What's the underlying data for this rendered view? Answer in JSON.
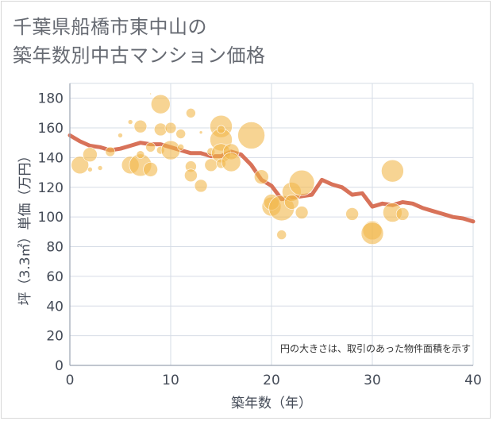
{
  "title_lines": [
    "千葉県船橋市東中山の",
    "築年数別中古マンション価格"
  ],
  "chart_data": {
    "type": "scatter",
    "title": "千葉県船橋市東中山の築年数別中古マンション価格",
    "xlabel": "築年数（年）",
    "ylabel": "坪（3.3㎡）単価（万円）",
    "xlim": [
      0,
      40
    ],
    "ylim": [
      0,
      190
    ],
    "xticks": [
      0,
      10,
      20,
      30,
      40
    ],
    "yticks": [
      0,
      20,
      40,
      60,
      80,
      100,
      120,
      140,
      160,
      180
    ],
    "grid": true,
    "note": "円の大きさは、取引のあった物件面積を示す",
    "colors": {
      "bubble": "#f2b84b",
      "trend": "#d66a50",
      "grid": "#d6dce6",
      "axis": "#9aa3b2"
    },
    "bubbles": [
      {
        "x": 1,
        "y": 135,
        "r": 11
      },
      {
        "x": 2,
        "y": 142,
        "r": 9
      },
      {
        "x": 2,
        "y": 132,
        "r": 3
      },
      {
        "x": 3,
        "y": 133,
        "r": 3
      },
      {
        "x": 4,
        "y": 144,
        "r": 6
      },
      {
        "x": 5,
        "y": 155,
        "r": 3
      },
      {
        "x": 6,
        "y": 164,
        "r": 3
      },
      {
        "x": 6,
        "y": 135,
        "r": 11
      },
      {
        "x": 7,
        "y": 135,
        "r": 14
      },
      {
        "x": 7,
        "y": 161,
        "r": 8
      },
      {
        "x": 7,
        "y": 142,
        "r": 5
      },
      {
        "x": 8,
        "y": 183,
        "r": 1
      },
      {
        "x": 8,
        "y": 147,
        "r": 6
      },
      {
        "x": 8,
        "y": 132,
        "r": 9
      },
      {
        "x": 9,
        "y": 176,
        "r": 12
      },
      {
        "x": 9,
        "y": 159,
        "r": 8
      },
      {
        "x": 9,
        "y": 145,
        "r": 5
      },
      {
        "x": 10,
        "y": 145,
        "r": 12
      },
      {
        "x": 10,
        "y": 160,
        "r": 7
      },
      {
        "x": 11,
        "y": 156,
        "r": 6
      },
      {
        "x": 11,
        "y": 147,
        "r": 4
      },
      {
        "x": 12,
        "y": 170,
        "r": 6
      },
      {
        "x": 12,
        "y": 134,
        "r": 7
      },
      {
        "x": 12,
        "y": 128,
        "r": 8
      },
      {
        "x": 13,
        "y": 121,
        "r": 8
      },
      {
        "x": 13,
        "y": 157,
        "r": 2
      },
      {
        "x": 14,
        "y": 135,
        "r": 8
      },
      {
        "x": 14,
        "y": 144,
        "r": 5
      },
      {
        "x": 15,
        "y": 161,
        "r": 14
      },
      {
        "x": 15,
        "y": 152,
        "r": 14
      },
      {
        "x": 15,
        "y": 143,
        "r": 12
      },
      {
        "x": 15,
        "y": 136,
        "r": 6
      },
      {
        "x": 15,
        "y": 159,
        "r": 5
      },
      {
        "x": 16,
        "y": 144,
        "r": 10
      },
      {
        "x": 16,
        "y": 137,
        "r": 12
      },
      {
        "x": 18,
        "y": 155,
        "r": 17
      },
      {
        "x": 19,
        "y": 127,
        "r": 9
      },
      {
        "x": 20,
        "y": 107,
        "r": 12
      },
      {
        "x": 20,
        "y": 110,
        "r": 10
      },
      {
        "x": 21,
        "y": 106,
        "r": 16
      },
      {
        "x": 21,
        "y": 88,
        "r": 6
      },
      {
        "x": 22,
        "y": 117,
        "r": 12
      },
      {
        "x": 22,
        "y": 110,
        "r": 9
      },
      {
        "x": 23,
        "y": 123,
        "r": 16
      },
      {
        "x": 23,
        "y": 103,
        "r": 8
      },
      {
        "x": 28,
        "y": 102,
        "r": 8
      },
      {
        "x": 30,
        "y": 91,
        "r": 12
      },
      {
        "x": 30,
        "y": 89,
        "r": 14
      },
      {
        "x": 32,
        "y": 131,
        "r": 14
      },
      {
        "x": 32,
        "y": 103,
        "r": 12
      },
      {
        "x": 33,
        "y": 102,
        "r": 8
      }
    ],
    "trend": {
      "x": [
        0,
        1,
        2,
        3,
        4,
        5,
        6,
        7,
        8,
        9,
        10,
        11,
        12,
        13,
        14,
        15,
        16,
        17,
        18,
        19,
        20,
        21,
        22,
        23,
        24,
        25,
        26,
        27,
        28,
        29,
        30,
        31,
        32,
        33,
        34,
        35,
        36,
        37,
        38,
        39,
        40
      ],
      "y": [
        155,
        151,
        148,
        147,
        145,
        146,
        148,
        150,
        149,
        149,
        147,
        145,
        143,
        143,
        141,
        141,
        144,
        142,
        135,
        125,
        121,
        112,
        113,
        114,
        115,
        125,
        122,
        120,
        115,
        116,
        107,
        109,
        108,
        110,
        109,
        106,
        104,
        102,
        100,
        99,
        97
      ]
    }
  }
}
